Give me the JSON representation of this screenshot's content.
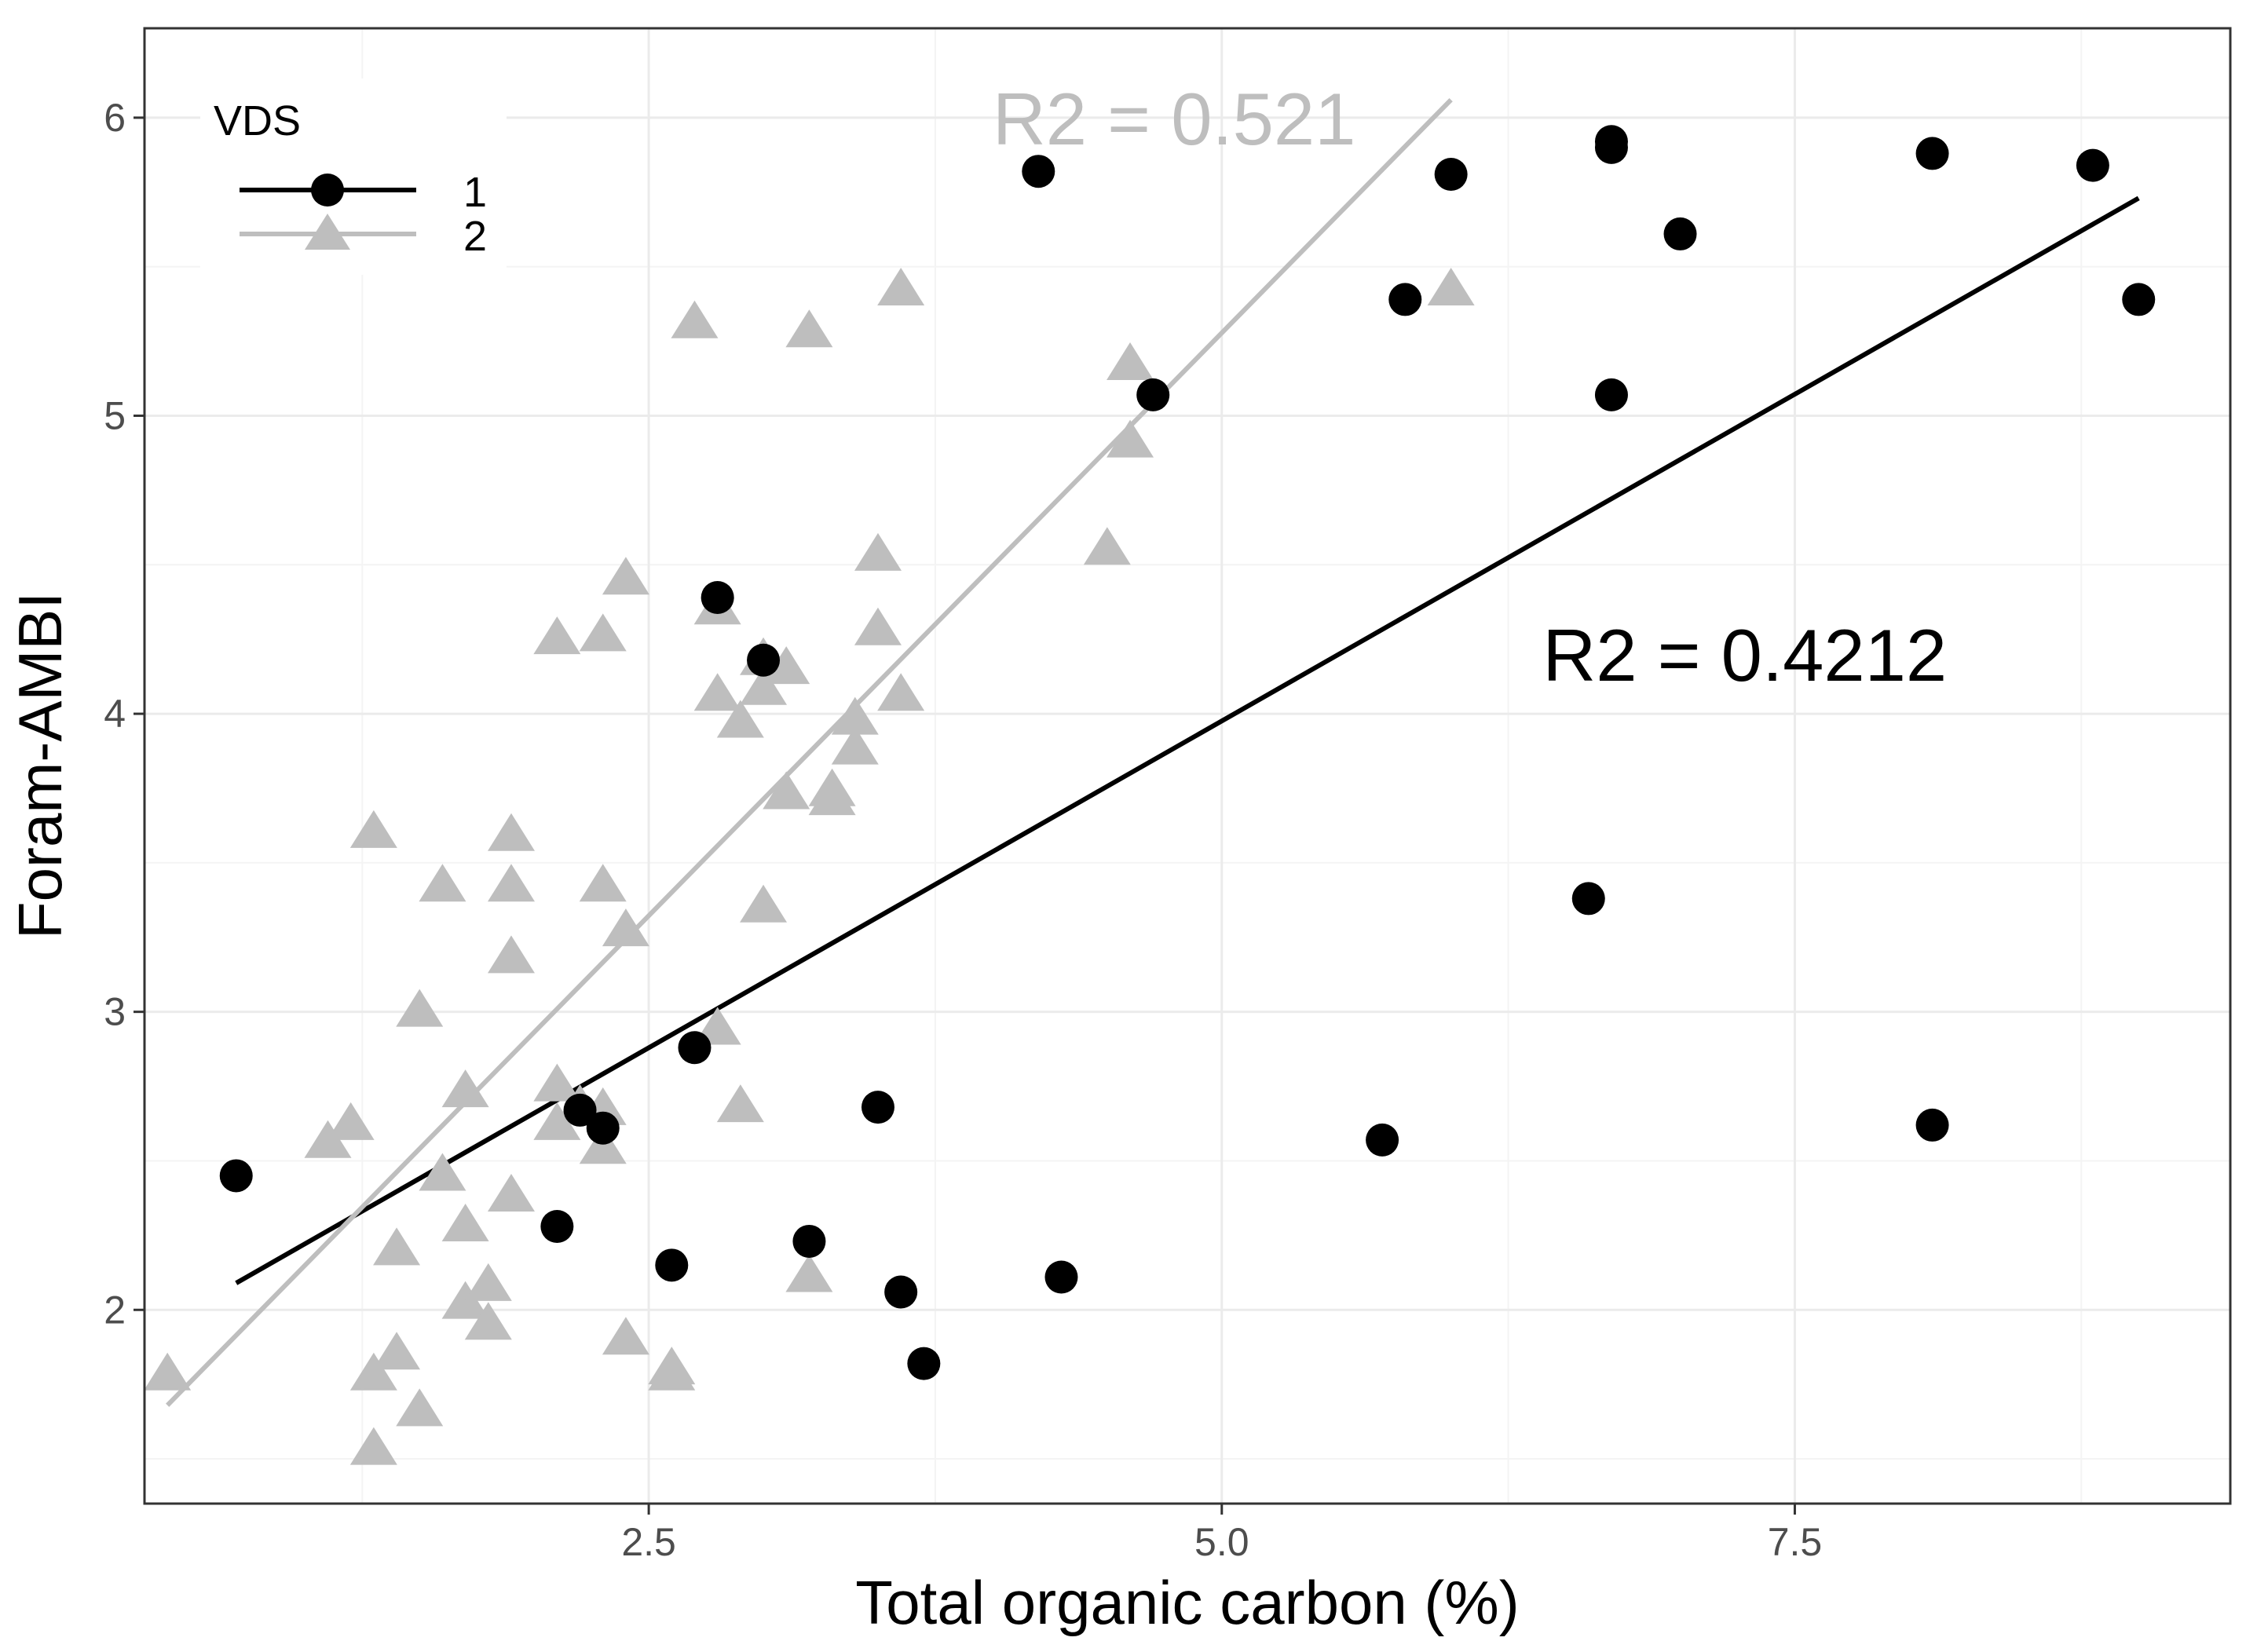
{
  "chart_data": {
    "type": "scatter",
    "title": "",
    "xlabel": "Total organic carbon (%)",
    "ylabel": "Foram-AMBI",
    "xlim": [
      0.3,
      9.4
    ],
    "ylim": [
      1.35,
      6.3
    ],
    "x_ticks": [
      2.5,
      5.0,
      7.5
    ],
    "x_tick_labels": [
      "2.5",
      "5.0",
      "7.5"
    ],
    "y_ticks": [
      2,
      3,
      4,
      5,
      6
    ],
    "y_tick_labels": [
      "2",
      "3",
      "4",
      "5",
      "6"
    ],
    "grid": true,
    "legend": {
      "title": "VDS",
      "position": "top-left",
      "entries": [
        {
          "label": "1",
          "marker": "circle",
          "color": "#000000"
        },
        {
          "label": "2",
          "marker": "triangle",
          "color": "#bebebe"
        }
      ]
    },
    "series": [
      {
        "name": "1",
        "marker": "circle",
        "color": "#000000",
        "points": [
          [
            0.7,
            2.45
          ],
          [
            2.1,
            2.28
          ],
          [
            2.2,
            2.67
          ],
          [
            2.3,
            2.61
          ],
          [
            2.6,
            2.15
          ],
          [
            2.7,
            2.88
          ],
          [
            2.8,
            4.39
          ],
          [
            3.0,
            4.18
          ],
          [
            3.2,
            2.23
          ],
          [
            3.5,
            2.68
          ],
          [
            3.6,
            2.06
          ],
          [
            3.7,
            1.82
          ],
          [
            4.2,
            5.82
          ],
          [
            4.3,
            2.11
          ],
          [
            4.7,
            5.07
          ],
          [
            5.7,
            2.57
          ],
          [
            5.8,
            5.39
          ],
          [
            6.0,
            5.81
          ],
          [
            6.6,
            3.38
          ],
          [
            6.7,
            5.07
          ],
          [
            6.7,
            5.9
          ],
          [
            6.7,
            5.92
          ],
          [
            7.0,
            5.61
          ],
          [
            8.1,
            5.88
          ],
          [
            8.1,
            2.62
          ],
          [
            8.8,
            5.84
          ],
          [
            9.0,
            5.39
          ]
        ],
        "fit": {
          "x": [
            0.7,
            9.0
          ],
          "y": [
            2.09,
            5.73
          ]
        },
        "annotation": {
          "text": "R2 = 0.4212",
          "x": 6.4,
          "y": 4.2
        }
      },
      {
        "name": "2",
        "marker": "triangle",
        "color": "#bebebe",
        "points": [
          [
            0.4,
            1.78
          ],
          [
            1.1,
            2.56
          ],
          [
            1.2,
            2.62
          ],
          [
            1.3,
            3.6
          ],
          [
            1.3,
            1.78
          ],
          [
            1.3,
            1.53
          ],
          [
            1.4,
            1.85
          ],
          [
            1.4,
            2.2
          ],
          [
            1.5,
            3.0
          ],
          [
            1.5,
            1.66
          ],
          [
            1.6,
            3.42
          ],
          [
            1.6,
            2.45
          ],
          [
            1.7,
            2.73
          ],
          [
            1.7,
            2.28
          ],
          [
            1.7,
            2.02
          ],
          [
            1.8,
            2.08
          ],
          [
            1.8,
            1.95
          ],
          [
            1.9,
            3.59
          ],
          [
            1.9,
            3.42
          ],
          [
            1.9,
            3.18
          ],
          [
            1.9,
            2.38
          ],
          [
            2.1,
            4.25
          ],
          [
            2.1,
            2.75
          ],
          [
            2.1,
            2.62
          ],
          [
            2.2,
            2.68
          ],
          [
            2.3,
            4.26
          ],
          [
            2.3,
            3.42
          ],
          [
            2.3,
            2.67
          ],
          [
            2.3,
            2.54
          ],
          [
            2.4,
            4.45
          ],
          [
            2.4,
            3.27
          ],
          [
            2.4,
            1.9
          ],
          [
            2.6,
            1.8
          ],
          [
            2.6,
            1.78
          ],
          [
            2.7,
            5.31
          ],
          [
            2.8,
            4.35
          ],
          [
            2.8,
            4.06
          ],
          [
            2.8,
            2.94
          ],
          [
            2.9,
            3.97
          ],
          [
            2.9,
            2.68
          ],
          [
            3.0,
            3.35
          ],
          [
            3.0,
            4.18
          ],
          [
            3.0,
            4.08
          ],
          [
            3.1,
            4.15
          ],
          [
            3.1,
            3.73
          ],
          [
            3.2,
            5.28
          ],
          [
            3.2,
            2.11
          ],
          [
            3.3,
            3.74
          ],
          [
            3.3,
            3.71
          ],
          [
            3.4,
            3.98
          ],
          [
            3.4,
            3.88
          ],
          [
            3.5,
            4.53
          ],
          [
            3.5,
            4.28
          ],
          [
            3.6,
            5.42
          ],
          [
            3.6,
            4.06
          ],
          [
            4.5,
            4.55
          ],
          [
            4.6,
            5.17
          ],
          [
            4.6,
            4.91
          ],
          [
            6.0,
            5.42
          ]
        ],
        "fit": {
          "x": [
            0.4,
            6.0
          ],
          "y": [
            1.68,
            6.06
          ]
        },
        "annotation": {
          "text": "R2 = 0.521",
          "x": 4.0,
          "y": 6.0
        }
      }
    ]
  }
}
